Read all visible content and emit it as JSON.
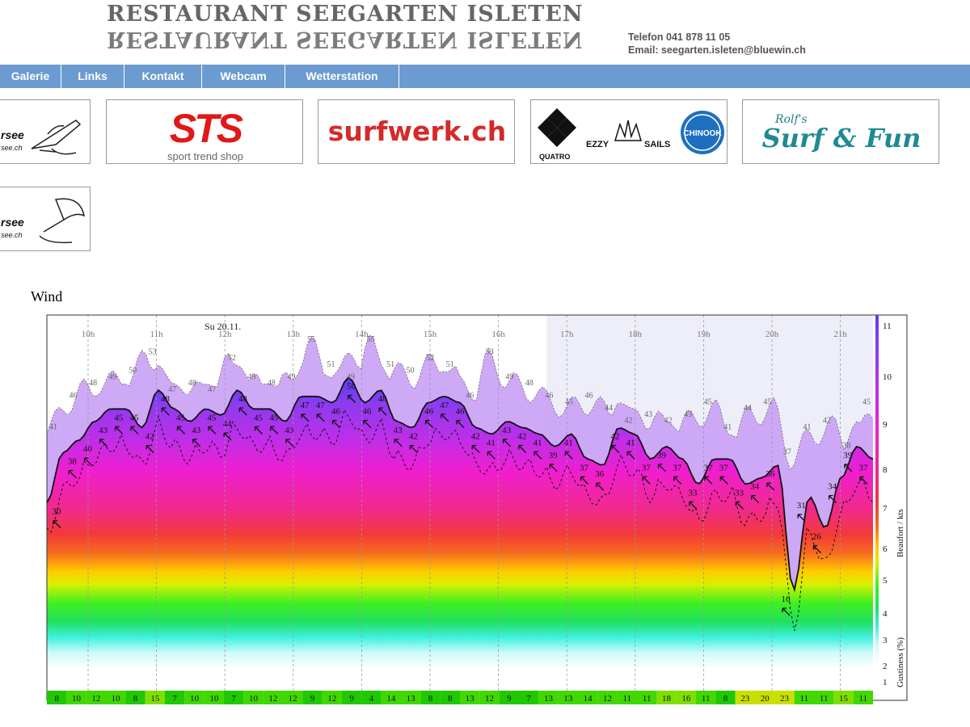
{
  "header": {
    "title": "RESTAURANT SEEGARTEN ISLETEN",
    "phone": "Telefon 041 878 11 05",
    "email": "Email: seegarten.isleten@bluewin.ch"
  },
  "nav": {
    "items": [
      {
        "label": "Galerie"
      },
      {
        "label": "Links"
      },
      {
        "label": "Kontakt"
      },
      {
        "label": "Webcam"
      },
      {
        "label": "Wetterstation"
      }
    ]
  },
  "sponsors": {
    "urnersee_partial_1": "rsee",
    "urnersee_partial_1_sub": "see.ch",
    "sts_logo": "STS",
    "sts_sub": "sport trend shop",
    "surfwerk": "surfwerk.ch",
    "quatro": "QUATRO",
    "ezzy": "EZZY",
    "sails": "SAILS",
    "chinook": "CHINOOK",
    "rolfs_top": "Rolf's",
    "rolfs_main": "Surf & Fun",
    "urnersee_partial_2": "rsee",
    "urnersee_partial_2_sub": "see.ch"
  },
  "section": {
    "title": "Wind"
  },
  "chart_data": {
    "type": "area",
    "date_label": "Su 20.11.",
    "hour_labels": [
      "10h",
      "11h",
      "12h",
      "13h",
      "14h",
      "15h",
      "16h",
      "17h",
      "18h",
      "19h",
      "20h",
      "21h"
    ],
    "beaufort_ticks": [
      1,
      2,
      3,
      4,
      5,
      6,
      7,
      8,
      9,
      10,
      11
    ],
    "right_axis_label": "Beaufort / kts",
    "gust_axis_label": "Gustiness (%)",
    "ylim_kts": [
      0,
      60
    ],
    "mean_labels": [
      30,
      38,
      40,
      43,
      45,
      45,
      42,
      48,
      45,
      43,
      45,
      44,
      48,
      45,
      45,
      43,
      47,
      47,
      46,
      50,
      46,
      48,
      43,
      42,
      46,
      47,
      46,
      42,
      41,
      43,
      42,
      41,
      39,
      41,
      37,
      36,
      42,
      41,
      37,
      39,
      37,
      33,
      37,
      37,
      33,
      34,
      36,
      16,
      31,
      26,
      34,
      39,
      37
    ],
    "gust_labels": [
      41,
      46,
      48,
      49,
      50,
      53,
      47,
      48,
      47,
      52,
      49,
      48,
      49,
      55,
      51,
      49,
      55,
      51,
      50,
      52,
      51,
      46,
      53,
      49,
      48,
      46,
      45,
      46,
      44,
      42,
      43,
      42,
      43,
      45,
      41,
      44,
      45,
      37,
      41,
      42,
      38,
      45
    ],
    "gustiness": [
      8,
      10,
      12,
      10,
      8,
      15,
      7,
      10,
      10,
      7,
      10,
      12,
      12,
      9,
      12,
      9,
      4,
      14,
      13,
      8,
      8,
      13,
      12,
      9,
      7,
      13,
      13,
      14,
      12,
      11,
      11,
      18,
      16,
      11,
      8,
      23,
      20,
      23,
      11,
      11,
      15,
      11
    ]
  }
}
